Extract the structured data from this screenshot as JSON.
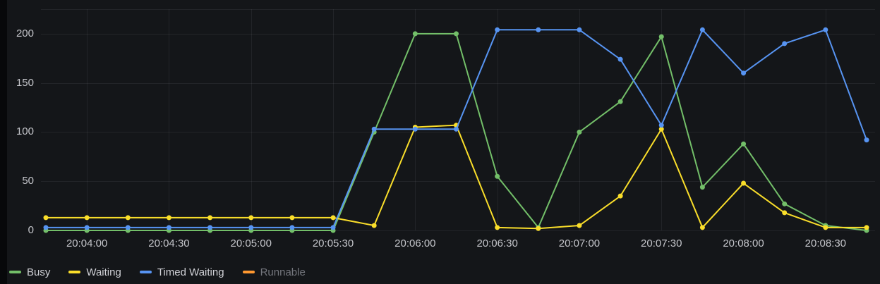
{
  "panel": {
    "background": "#141619",
    "edge_color": "#07080a",
    "grid_color": "rgba(204,204,220,0.08)",
    "axis_text_color": "#c5c6cb",
    "legend_text_color": "#d0d1d6",
    "legend_dimmed_text_color": "#74767d"
  },
  "chart_data": {
    "type": "line",
    "title": "",
    "xlabel": "",
    "ylabel": "",
    "grid": true,
    "legend_position": "bottom-left",
    "x_time_range": {
      "start": "20:03:45",
      "end": "20:08:45",
      "step_seconds": 15
    },
    "x_offsets_seconds": [
      0,
      15,
      30,
      45,
      60,
      75,
      90,
      105,
      120,
      135,
      150,
      165,
      180,
      195,
      210,
      225,
      240,
      255,
      270,
      285,
      300
    ],
    "x_ticks": [
      {
        "t": 15,
        "label": "20:04:00"
      },
      {
        "t": 45,
        "label": "20:04:30"
      },
      {
        "t": 75,
        "label": "20:05:00"
      },
      {
        "t": 105,
        "label": "20:05:30"
      },
      {
        "t": 135,
        "label": "20:06:00"
      },
      {
        "t": 165,
        "label": "20:06:30"
      },
      {
        "t": 195,
        "label": "20:07:00"
      },
      {
        "t": 225,
        "label": "20:07:30"
      },
      {
        "t": 255,
        "label": "20:08:00"
      },
      {
        "t": 285,
        "label": "20:08:30"
      }
    ],
    "y_ticks": [
      0,
      50,
      100,
      150,
      200
    ],
    "ylim": [
      0,
      225
    ],
    "series": [
      {
        "name": "Busy",
        "color": "#73BF69",
        "visible": true,
        "values": [
          0,
          0,
          0,
          0,
          0,
          0,
          0,
          0,
          100,
          200,
          200,
          55,
          3,
          100,
          131,
          197,
          44,
          88,
          27,
          5,
          0
        ]
      },
      {
        "name": "Waiting",
        "color": "#FADE2A",
        "visible": true,
        "values": [
          13,
          13,
          13,
          13,
          13,
          13,
          13,
          13,
          5,
          105,
          107,
          3,
          2,
          5,
          35,
          103,
          3,
          48,
          18,
          3,
          3
        ]
      },
      {
        "name": "Timed Waiting",
        "color": "#5794F2",
        "visible": true,
        "values": [
          3,
          3,
          3,
          3,
          3,
          3,
          3,
          3,
          103,
          103,
          103,
          204,
          204,
          204,
          174,
          107,
          204,
          160,
          190,
          204,
          92
        ]
      },
      {
        "name": "Runnable",
        "color": "#FF9830",
        "visible": false,
        "values": []
      }
    ]
  }
}
